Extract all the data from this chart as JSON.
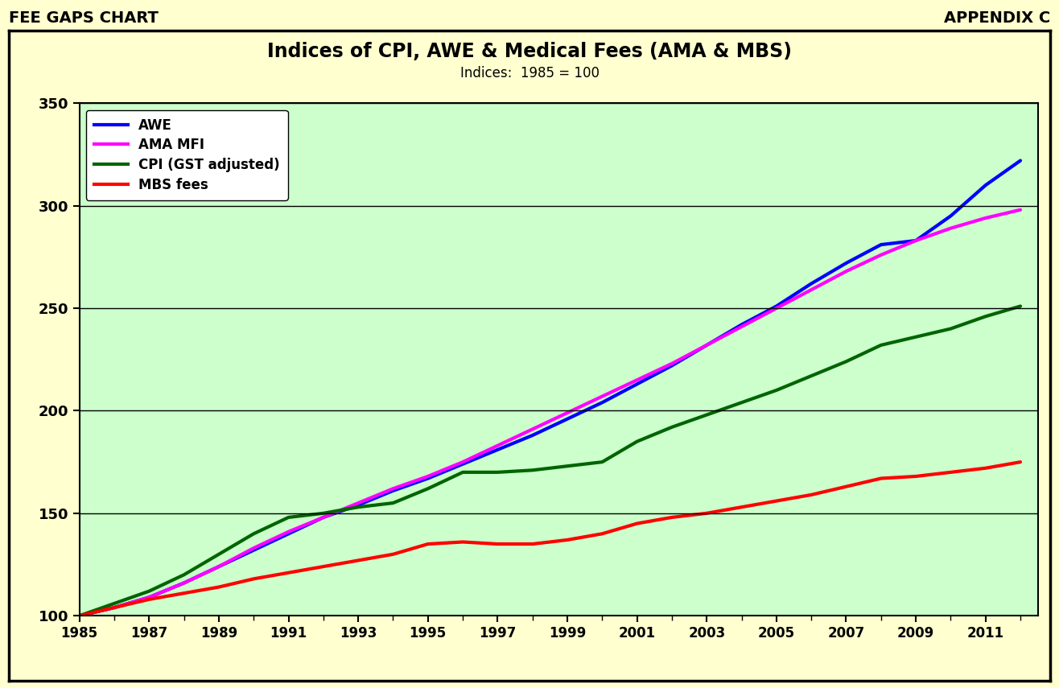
{
  "title": "Indices of CPI, AWE & Medical Fees (AMA & MBS)",
  "subtitle": "Indices:  1985 = 100",
  "header_left": "FEE GAPS CHART",
  "header_right": "APPENDIX C",
  "outer_bg": "#FFFFD0",
  "inner_bg": "#CCFFCC",
  "ylim": [
    100,
    350
  ],
  "yticks": [
    100,
    150,
    200,
    250,
    300,
    350
  ],
  "xlabel_years": [
    1985,
    1987,
    1989,
    1991,
    1993,
    1995,
    1997,
    1999,
    2001,
    2003,
    2005,
    2007,
    2009,
    2011
  ],
  "xlim": [
    1985,
    2012.5
  ],
  "series": {
    "AWE": {
      "color": "#0000FF",
      "linewidth": 3,
      "data": {
        "1985": 100,
        "1986": 104,
        "1987": 109,
        "1988": 116,
        "1989": 124,
        "1990": 132,
        "1991": 140,
        "1992": 148,
        "1993": 154,
        "1994": 161,
        "1995": 167,
        "1996": 174,
        "1997": 181,
        "1998": 188,
        "1999": 196,
        "2000": 204,
        "2001": 213,
        "2002": 222,
        "2003": 232,
        "2004": 242,
        "2005": 251,
        "2006": 262,
        "2007": 272,
        "2008": 281,
        "2009": 283,
        "2010": 295,
        "2011": 310,
        "2012": 322
      }
    },
    "AMA MFI": {
      "color": "#FF00FF",
      "linewidth": 3,
      "data": {
        "1985": 100,
        "1986": 104,
        "1987": 109,
        "1988": 116,
        "1989": 124,
        "1990": 133,
        "1991": 141,
        "1992": 148,
        "1993": 155,
        "1994": 162,
        "1995": 168,
        "1996": 175,
        "1997": 183,
        "1998": 191,
        "1999": 199,
        "2000": 207,
        "2001": 215,
        "2002": 223,
        "2003": 232,
        "2004": 241,
        "2005": 250,
        "2006": 259,
        "2007": 268,
        "2008": 276,
        "2009": 283,
        "2010": 289,
        "2011": 294,
        "2012": 298
      }
    },
    "CPI (GST adjusted)": {
      "color": "#006400",
      "linewidth": 3,
      "data": {
        "1985": 100,
        "1986": 106,
        "1987": 112,
        "1988": 120,
        "1989": 130,
        "1990": 140,
        "1991": 148,
        "1992": 150,
        "1993": 153,
        "1994": 155,
        "1995": 162,
        "1996": 170,
        "1997": 170,
        "1998": 171,
        "1999": 173,
        "2000": 175,
        "2001": 185,
        "2002": 192,
        "2003": 198,
        "2004": 204,
        "2005": 210,
        "2006": 217,
        "2007": 224,
        "2008": 232,
        "2009": 236,
        "2010": 240,
        "2011": 246,
        "2012": 251
      }
    },
    "MBS fees": {
      "color": "#FF0000",
      "linewidth": 3,
      "data": {
        "1985": 100,
        "1986": 104,
        "1987": 108,
        "1988": 111,
        "1989": 114,
        "1990": 118,
        "1991": 121,
        "1992": 124,
        "1993": 127,
        "1994": 130,
        "1995": 135,
        "1996": 136,
        "1997": 135,
        "1998": 135,
        "1999": 137,
        "2000": 140,
        "2001": 145,
        "2002": 148,
        "2003": 150,
        "2004": 153,
        "2005": 156,
        "2006": 159,
        "2007": 163,
        "2008": 167,
        "2009": 168,
        "2010": 170,
        "2011": 172,
        "2012": 175
      }
    }
  }
}
